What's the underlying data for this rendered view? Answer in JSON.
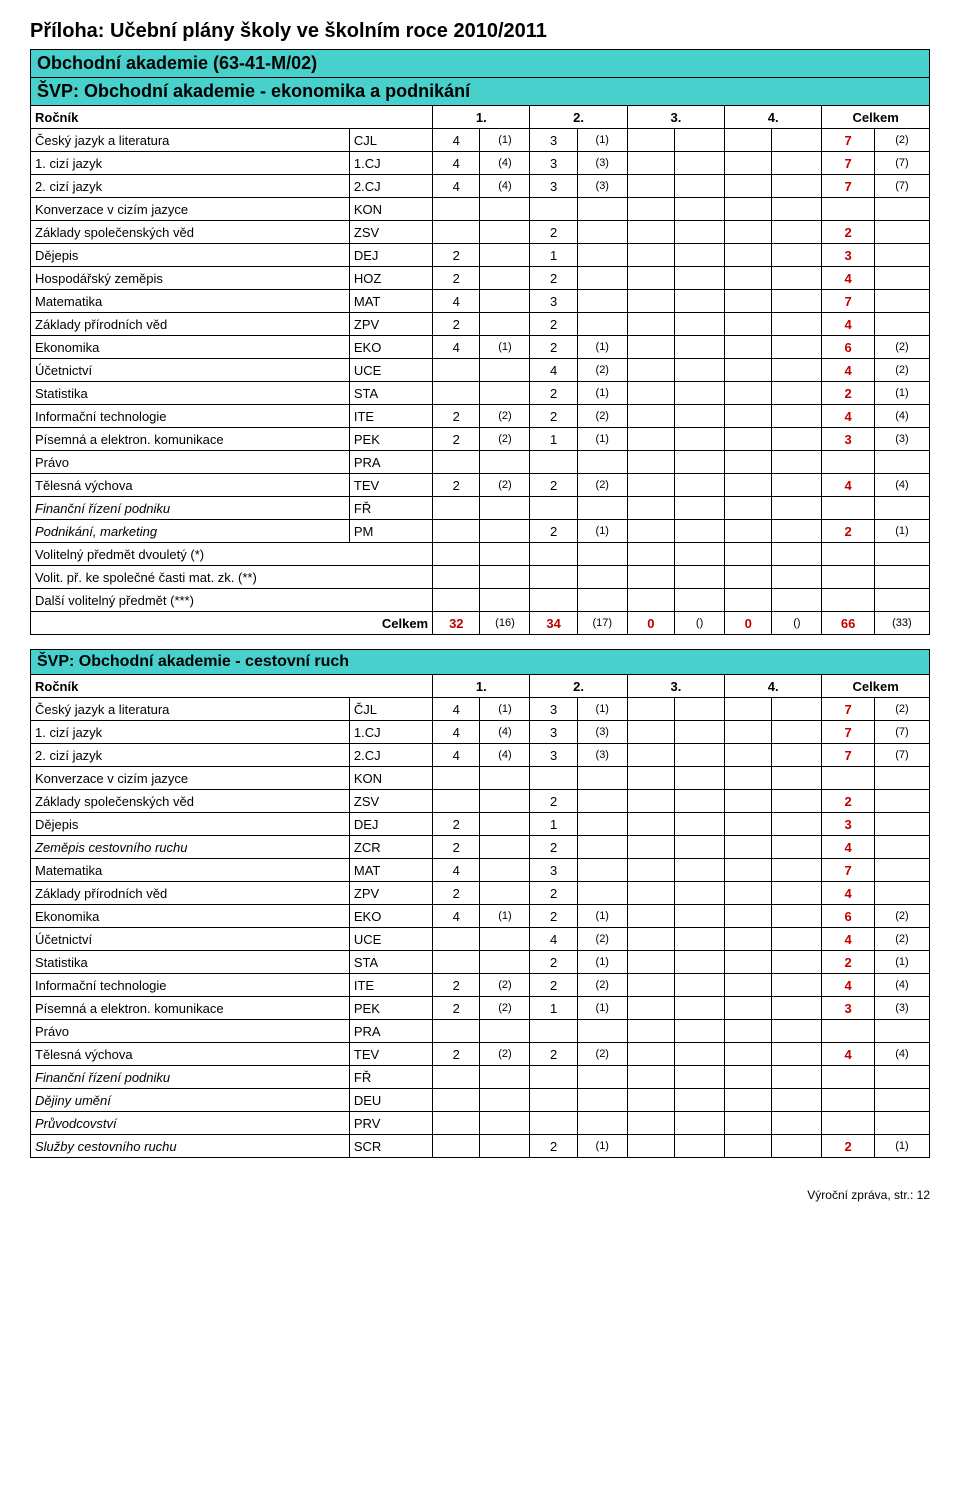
{
  "page_title": "Příloha: Učební plány školy ve školním roce 2010/2011",
  "colors": {
    "banner_bg": "#48d1cc",
    "total_color": "#c00000",
    "border": "#000000",
    "bg": "#ffffff"
  },
  "table1": {
    "banner1": "Obchodní akademie (63-41-M/02)",
    "banner2": "ŠVP: Obchodní akademie - ekonomika a podnikání",
    "header": {
      "c0": "Ročník",
      "c1": "1.",
      "c2": "2.",
      "c3": "3.",
      "c4": "4.",
      "c5": "Celkem"
    },
    "rows": [
      {
        "name": "Český jazyk a literatura",
        "code": "CJL",
        "v": [
          "4",
          "(1)",
          "3",
          "(1)",
          "",
          "",
          "",
          "",
          "7",
          "(2)"
        ]
      },
      {
        "name": "1. cizí jazyk",
        "code": "1.CJ",
        "v": [
          "4",
          "(4)",
          "3",
          "(3)",
          "",
          "",
          "",
          "",
          "7",
          "(7)"
        ]
      },
      {
        "name": "2. cizí jazyk",
        "code": "2.CJ",
        "v": [
          "4",
          "(4)",
          "3",
          "(3)",
          "",
          "",
          "",
          "",
          "7",
          "(7)"
        ]
      },
      {
        "name": "Konverzace v cizím jazyce",
        "code": "KON",
        "v": [
          "",
          "",
          "",
          "",
          "",
          "",
          "",
          "",
          "",
          ""
        ]
      },
      {
        "name": "Základy společenských věd",
        "code": "ZSV",
        "v": [
          "",
          "",
          "2",
          "",
          "",
          "",
          "",
          "",
          "2",
          ""
        ]
      },
      {
        "name": "Dějepis",
        "code": "DEJ",
        "v": [
          "2",
          "",
          "1",
          "",
          "",
          "",
          "",
          "",
          "3",
          ""
        ]
      },
      {
        "name": "Hospodářský zeměpis",
        "code": "HOZ",
        "v": [
          "2",
          "",
          "2",
          "",
          "",
          "",
          "",
          "",
          "4",
          ""
        ]
      },
      {
        "name": "Matematika",
        "code": "MAT",
        "v": [
          "4",
          "",
          "3",
          "",
          "",
          "",
          "",
          "",
          "7",
          ""
        ]
      },
      {
        "name": "Základy přírodních věd",
        "code": "ZPV",
        "v": [
          "2",
          "",
          "2",
          "",
          "",
          "",
          "",
          "",
          "4",
          ""
        ]
      },
      {
        "name": "Ekonomika",
        "code": "EKO",
        "v": [
          "4",
          "(1)",
          "2",
          "(1)",
          "",
          "",
          "",
          "",
          "6",
          "(2)"
        ]
      },
      {
        "name": "Účetnictví",
        "code": "UCE",
        "v": [
          "",
          "",
          "4",
          "(2)",
          "",
          "",
          "",
          "",
          "4",
          "(2)"
        ]
      },
      {
        "name": "Statistika",
        "code": "STA",
        "v": [
          "",
          "",
          "2",
          "(1)",
          "",
          "",
          "",
          "",
          "2",
          "(1)"
        ]
      },
      {
        "name": "Informační technologie",
        "code": "ITE",
        "v": [
          "2",
          "(2)",
          "2",
          "(2)",
          "",
          "",
          "",
          "",
          "4",
          "(4)"
        ]
      },
      {
        "name": "Písemná a elektron. komunikace",
        "code": "PEK",
        "v": [
          "2",
          "(2)",
          "1",
          "(1)",
          "",
          "",
          "",
          "",
          "3",
          "(3)"
        ]
      },
      {
        "name": "Právo",
        "code": "PRA",
        "v": [
          "",
          "",
          "",
          "",
          "",
          "",
          "",
          "",
          "",
          ""
        ]
      },
      {
        "name": "Tělesná výchova",
        "code": "TEV",
        "v": [
          "2",
          "(2)",
          "2",
          "(2)",
          "",
          "",
          "",
          "",
          "4",
          "(4)"
        ]
      },
      {
        "name": "Finanční řízení podniku",
        "code": "FŘ",
        "v": [
          "",
          "",
          "",
          "",
          "",
          "",
          "",
          "",
          "",
          ""
        ],
        "italic": true
      },
      {
        "name": "Podnikání, marketing",
        "code": "PM",
        "v": [
          "",
          "",
          "2",
          "(1)",
          "",
          "",
          "",
          "",
          "2",
          "(1)"
        ],
        "italic": true
      },
      {
        "name": "Volitelný předmět dvouletý (*)",
        "code": "",
        "v": [
          "",
          "",
          "",
          "",
          "",
          "",
          "",
          "",
          "",
          ""
        ]
      },
      {
        "name": "Volit. př. ke společné časti mat. zk. (**)",
        "code": "",
        "v": [
          "",
          "",
          "",
          "",
          "",
          "",
          "",
          "",
          "",
          ""
        ]
      },
      {
        "name": "Další volitelný předmět (***)",
        "code": "",
        "v": [
          "",
          "",
          "",
          "",
          "",
          "",
          "",
          "",
          "",
          ""
        ]
      }
    ],
    "totals": {
      "label": "Celkem",
      "v": [
        "32",
        "(16)",
        "34",
        "(17)",
        "0",
        "()",
        "0",
        "()",
        "66",
        "(33)"
      ]
    }
  },
  "table2": {
    "banner": "ŠVP: Obchodní akademie - cestovní ruch",
    "header": {
      "c0": "Ročník",
      "c1": "1.",
      "c2": "2.",
      "c3": "3.",
      "c4": "4.",
      "c5": "Celkem"
    },
    "rows": [
      {
        "name": "Český jazyk a literatura",
        "code": "ČJL",
        "v": [
          "4",
          "(1)",
          "3",
          "(1)",
          "",
          "",
          "",
          "",
          "7",
          "(2)"
        ]
      },
      {
        "name": "1. cizí jazyk",
        "code": "1.CJ",
        "v": [
          "4",
          "(4)",
          "3",
          "(3)",
          "",
          "",
          "",
          "",
          "7",
          "(7)"
        ]
      },
      {
        "name": "2. cizí jazyk",
        "code": "2.CJ",
        "v": [
          "4",
          "(4)",
          "3",
          "(3)",
          "",
          "",
          "",
          "",
          "7",
          "(7)"
        ]
      },
      {
        "name": "Konverzace v cizím jazyce",
        "code": "KON",
        "v": [
          "",
          "",
          "",
          "",
          "",
          "",
          "",
          "",
          "",
          ""
        ]
      },
      {
        "name": "Základy společenských věd",
        "code": "ZSV",
        "v": [
          "",
          "",
          "2",
          "",
          "",
          "",
          "",
          "",
          "2",
          ""
        ]
      },
      {
        "name": "Dějepis",
        "code": "DEJ",
        "v": [
          "2",
          "",
          "1",
          "",
          "",
          "",
          "",
          "",
          "3",
          ""
        ]
      },
      {
        "name": "Zeměpis cestovního ruchu",
        "code": "ZCR",
        "v": [
          "2",
          "",
          "2",
          "",
          "",
          "",
          "",
          "",
          "4",
          ""
        ],
        "italic": true
      },
      {
        "name": "Matematika",
        "code": "MAT",
        "v": [
          "4",
          "",
          "3",
          "",
          "",
          "",
          "",
          "",
          "7",
          ""
        ]
      },
      {
        "name": "Základy přírodních věd",
        "code": "ZPV",
        "v": [
          "2",
          "",
          "2",
          "",
          "",
          "",
          "",
          "",
          "4",
          ""
        ]
      },
      {
        "name": "Ekonomika",
        "code": "EKO",
        "v": [
          "4",
          "(1)",
          "2",
          "(1)",
          "",
          "",
          "",
          "",
          "6",
          "(2)"
        ]
      },
      {
        "name": "Účetnictví",
        "code": "UCE",
        "v": [
          "",
          "",
          "4",
          "(2)",
          "",
          "",
          "",
          "",
          "4",
          "(2)"
        ]
      },
      {
        "name": "Statistika",
        "code": "STA",
        "v": [
          "",
          "",
          "2",
          "(1)",
          "",
          "",
          "",
          "",
          "2",
          "(1)"
        ]
      },
      {
        "name": "Informační technologie",
        "code": "ITE",
        "v": [
          "2",
          "(2)",
          "2",
          "(2)",
          "",
          "",
          "",
          "",
          "4",
          "(4)"
        ]
      },
      {
        "name": "Písemná a elektron. komunikace",
        "code": "PEK",
        "v": [
          "2",
          "(2)",
          "1",
          "(1)",
          "",
          "",
          "",
          "",
          "3",
          "(3)"
        ]
      },
      {
        "name": "Právo",
        "code": "PRA",
        "v": [
          "",
          "",
          "",
          "",
          "",
          "",
          "",
          "",
          "",
          ""
        ]
      },
      {
        "name": "Tělesná výchova",
        "code": "TEV",
        "v": [
          "2",
          "(2)",
          "2",
          "(2)",
          "",
          "",
          "",
          "",
          "4",
          "(4)"
        ]
      },
      {
        "name": "Finanční řízení podniku",
        "code": "FŘ",
        "v": [
          "",
          "",
          "",
          "",
          "",
          "",
          "",
          "",
          "",
          ""
        ],
        "italic": true
      },
      {
        "name": "Dějiny umění",
        "code": "DEU",
        "v": [
          "",
          "",
          "",
          "",
          "",
          "",
          "",
          "",
          "",
          ""
        ],
        "italic": true
      },
      {
        "name": "Průvodcovství",
        "code": "PRV",
        "v": [
          "",
          "",
          "",
          "",
          "",
          "",
          "",
          "",
          "",
          ""
        ],
        "italic": true
      },
      {
        "name": "Služby cestovního ruchu",
        "code": "SCR",
        "v": [
          "",
          "",
          "2",
          "(1)",
          "",
          "",
          "",
          "",
          "2",
          "(1)"
        ],
        "italic": true
      }
    ]
  },
  "footer": "Výroční zpráva, str.: 12"
}
